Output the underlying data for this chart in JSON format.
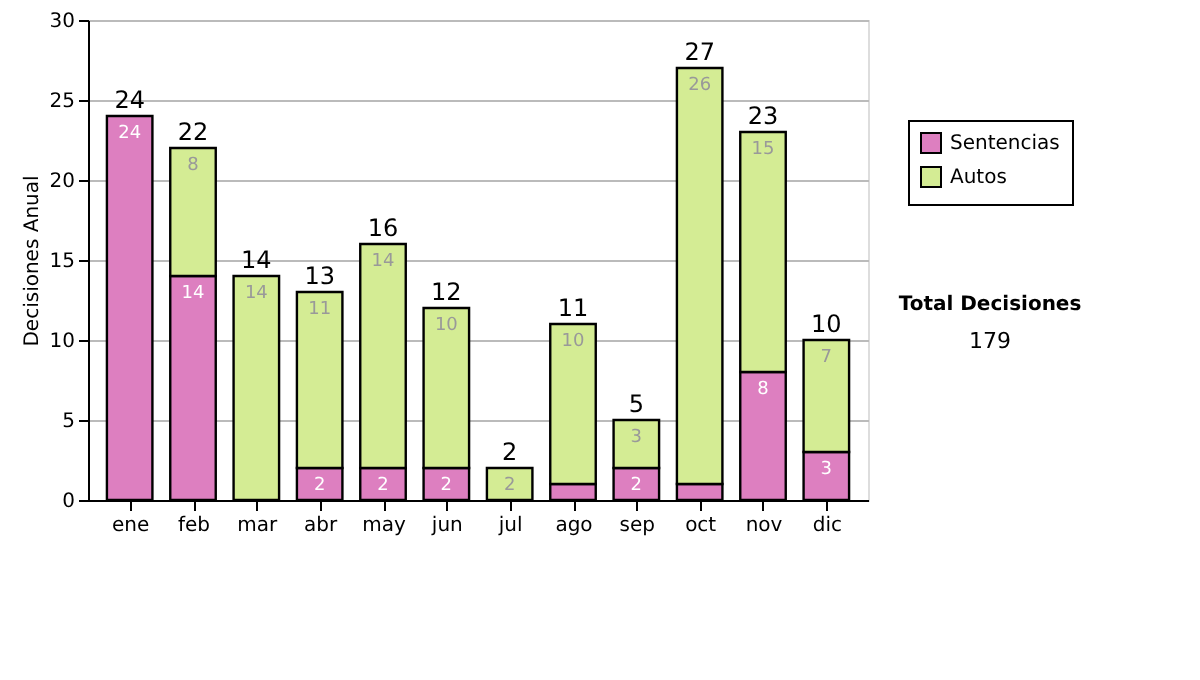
{
  "chart_data": {
    "type": "bar",
    "stacked": true,
    "ylabel": "Decisiones Anual",
    "categories": [
      "ene",
      "feb",
      "mar",
      "abr",
      "may",
      "jun",
      "jul",
      "ago",
      "sep",
      "oct",
      "nov",
      "dic"
    ],
    "series": [
      {
        "name": "Sentencias",
        "color": "#dd7fc0",
        "values": [
          24,
          14,
          0,
          2,
          2,
          2,
          0,
          1,
          2,
          1,
          8,
          3
        ],
        "value_labels": [
          "24",
          "14",
          null,
          "2",
          "2",
          "2",
          null,
          null,
          "2",
          null,
          "8",
          "3"
        ]
      },
      {
        "name": "Autos",
        "color": "#d4ec94",
        "values": [
          0,
          8,
          14,
          11,
          14,
          10,
          2,
          10,
          3,
          26,
          15,
          7
        ],
        "value_labels": [
          null,
          "8",
          "14",
          "11",
          "14",
          "10",
          "2",
          "10",
          "3",
          "26",
          "15",
          "7"
        ]
      }
    ],
    "totals": [
      "24",
      "22",
      "14",
      "13",
      "16",
      "12",
      "2",
      "11",
      "5",
      "27",
      "23",
      "10"
    ],
    "ylim": [
      0,
      30
    ],
    "yticks": [
      0,
      5,
      10,
      15,
      20,
      25,
      30
    ],
    "grid": "y",
    "legend": "right",
    "annotations": [
      "Total Decisiones",
      "179"
    ]
  }
}
